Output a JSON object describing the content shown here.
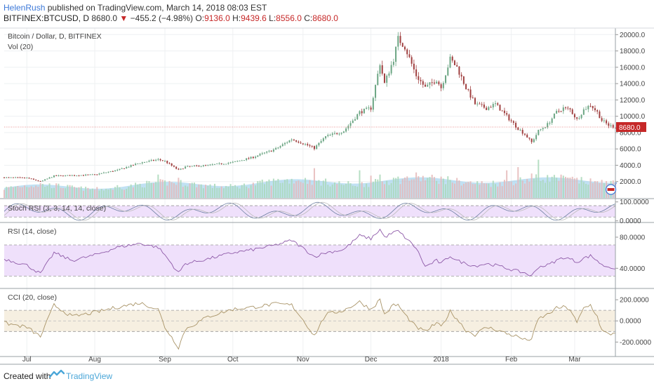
{
  "header": {
    "author": "HelenRush",
    "published_text": "published on TradingView.com, March 14, 2018 08:03 EST",
    "symbol": "BITFINEX:BTCUSD, D",
    "last": "8680.0",
    "change_arrow": "▼",
    "change": "−455.2 (−4.98%)",
    "o_label": "O:",
    "o_value": "9136.0",
    "h_label": "H:",
    "h_value": "9439.6",
    "l_label": "L:",
    "l_value": "8556.0",
    "c_label": "C:",
    "c_value": "8680.0"
  },
  "footer": {
    "created_with": "Created with",
    "brand": "TradingView"
  },
  "colors": {
    "up": "#6ba583",
    "down": "#a04040",
    "grid": "#eef0f2",
    "accent": "#c62828"
  },
  "chart_data": {
    "type": "candlestick",
    "title": "Bitcoin / Dollar, D, BITFINEX",
    "volume_label": "Vol (20)",
    "price_axis": {
      "ticks": [
        2000,
        4000,
        6000,
        8000,
        10000,
        12000,
        14000,
        16000,
        18000,
        20000
      ],
      "ylim": [
        0,
        20800
      ]
    },
    "tick_labels": [
      "2000.0",
      "4000.0",
      "6000.0",
      "8000.0",
      "10000.0",
      "12000.0",
      "14000.0",
      "16000.0",
      "18000.0",
      "20000.0"
    ],
    "last_price_label": "8680.0",
    "x_axis": {
      "labels": [
        "Jul",
        "Aug",
        "Sep",
        "Oct",
        "Nov",
        "Dec",
        "2018",
        "Feb",
        "Mar"
      ],
      "positions": [
        10,
        40,
        71,
        101,
        132,
        162,
        193,
        224,
        252
      ],
      "day_range": [
        0,
        270
      ]
    },
    "price_anchors": [
      [
        0,
        2500
      ],
      [
        10,
        2450
      ],
      [
        16,
        2000
      ],
      [
        22,
        2700
      ],
      [
        30,
        2750
      ],
      [
        40,
        2850
      ],
      [
        50,
        3400
      ],
      [
        60,
        4300
      ],
      [
        68,
        4700
      ],
      [
        71,
        4500
      ],
      [
        77,
        3400
      ],
      [
        80,
        3800
      ],
      [
        90,
        4000
      ],
      [
        101,
        4350
      ],
      [
        110,
        5000
      ],
      [
        120,
        6000
      ],
      [
        127,
        7200
      ],
      [
        131,
        6800
      ],
      [
        137,
        6100
      ],
      [
        142,
        7500
      ],
      [
        150,
        8200
      ],
      [
        157,
        10500
      ],
      [
        162,
        11000
      ],
      [
        166,
        16500
      ],
      [
        168,
        14000
      ],
      [
        172,
        17000
      ],
      [
        174,
        19500
      ],
      [
        177,
        18500
      ],
      [
        182,
        15000
      ],
      [
        186,
        13500
      ],
      [
        191,
        14500
      ],
      [
        193,
        13500
      ],
      [
        197,
        17000
      ],
      [
        200,
        16000
      ],
      [
        204,
        13500
      ],
      [
        208,
        11500
      ],
      [
        213,
        11000
      ],
      [
        217,
        11500
      ],
      [
        222,
        10000
      ],
      [
        227,
        8500
      ],
      [
        230,
        7800
      ],
      [
        233,
        6800
      ],
      [
        236,
        8200
      ],
      [
        240,
        9000
      ],
      [
        244,
        10500
      ],
      [
        247,
        11000
      ],
      [
        250,
        10800
      ],
      [
        253,
        9600
      ],
      [
        256,
        10800
      ],
      [
        259,
        11400
      ],
      [
        262,
        10500
      ],
      [
        264,
        9500
      ],
      [
        267,
        8900
      ],
      [
        270,
        8680
      ]
    ],
    "volume_spikes": [
      [
        16,
        1400
      ],
      [
        50,
        1200
      ],
      [
        68,
        2200
      ],
      [
        77,
        1900
      ],
      [
        137,
        2800
      ],
      [
        157,
        2600
      ],
      [
        162,
        2100
      ],
      [
        166,
        2200
      ],
      [
        172,
        1900
      ],
      [
        182,
        2400
      ],
      [
        197,
        1700
      ],
      [
        222,
        2600
      ],
      [
        227,
        2900
      ],
      [
        233,
        2300
      ],
      [
        236,
        3600
      ],
      [
        244,
        1900
      ],
      [
        264,
        1700
      ],
      [
        267,
        1300
      ]
    ],
    "indicators": [
      {
        "name": "Stoch RSI",
        "label": "Stoch RSI (3, 3, 14, 14, close)",
        "ticks": [
          0,
          100
        ],
        "tick_labels": [
          "0.0000",
          "100.0000"
        ],
        "bands": [
          20,
          80
        ]
      },
      {
        "name": "RSI",
        "label": "RSI (14, close)",
        "ticks": [
          40,
          80
        ],
        "tick_labels": [
          "40.0000",
          "80.0000"
        ],
        "bands": [
          30,
          70
        ],
        "anchors": [
          [
            0,
            52
          ],
          [
            10,
            44
          ],
          [
            16,
            33
          ],
          [
            22,
            60
          ],
          [
            30,
            50
          ],
          [
            40,
            57
          ],
          [
            50,
            67
          ],
          [
            60,
            72
          ],
          [
            68,
            67
          ],
          [
            71,
            57
          ],
          [
            77,
            34
          ],
          [
            80,
            46
          ],
          [
            90,
            52
          ],
          [
            101,
            60
          ],
          [
            110,
            64
          ],
          [
            120,
            70
          ],
          [
            127,
            76
          ],
          [
            131,
            68
          ],
          [
            137,
            55
          ],
          [
            142,
            60
          ],
          [
            150,
            64
          ],
          [
            157,
            82
          ],
          [
            162,
            78
          ],
          [
            166,
            90
          ],
          [
            168,
            80
          ],
          [
            172,
            86
          ],
          [
            174,
            88
          ],
          [
            177,
            80
          ],
          [
            182,
            66
          ],
          [
            186,
            42
          ],
          [
            191,
            50
          ],
          [
            193,
            46
          ],
          [
            197,
            56
          ],
          [
            200,
            50
          ],
          [
            204,
            46
          ],
          [
            208,
            43
          ],
          [
            213,
            46
          ],
          [
            217,
            44
          ],
          [
            222,
            40
          ],
          [
            227,
            36
          ],
          [
            230,
            34
          ],
          [
            233,
            30
          ],
          [
            236,
            42
          ],
          [
            240,
            44
          ],
          [
            244,
            50
          ],
          [
            247,
            54
          ],
          [
            250,
            52
          ],
          [
            253,
            48
          ],
          [
            256,
            53
          ],
          [
            259,
            56
          ],
          [
            262,
            50
          ],
          [
            264,
            44
          ],
          [
            267,
            42
          ],
          [
            270,
            40
          ]
        ]
      },
      {
        "name": "CCI",
        "label": "CCI (20, close)",
        "ticks": [
          -200,
          0,
          200
        ],
        "tick_labels": [
          "-200.0000",
          "0.0000",
          "200.0000"
        ],
        "bands": [
          -100,
          100
        ],
        "anchors": [
          [
            0,
            -20
          ],
          [
            10,
            -60
          ],
          [
            16,
            -150
          ],
          [
            22,
            150
          ],
          [
            30,
            40
          ],
          [
            40,
            80
          ],
          [
            50,
            130
          ],
          [
            60,
            170
          ],
          [
            68,
            110
          ],
          [
            71,
            -60
          ],
          [
            77,
            -250
          ],
          [
            80,
            -80
          ],
          [
            90,
            40
          ],
          [
            101,
            110
          ],
          [
            110,
            130
          ],
          [
            120,
            160
          ],
          [
            127,
            150
          ],
          [
            131,
            40
          ],
          [
            137,
            -140
          ],
          [
            142,
            60
          ],
          [
            150,
            100
          ],
          [
            157,
            180
          ],
          [
            162,
            110
          ],
          [
            166,
            200
          ],
          [
            168,
            60
          ],
          [
            172,
            150
          ],
          [
            174,
            150
          ],
          [
            177,
            60
          ],
          [
            182,
            -60
          ],
          [
            186,
            -100
          ],
          [
            191,
            -20
          ],
          [
            193,
            -60
          ],
          [
            197,
            90
          ],
          [
            200,
            20
          ],
          [
            204,
            -90
          ],
          [
            208,
            -130
          ],
          [
            213,
            -60
          ],
          [
            217,
            -80
          ],
          [
            222,
            -120
          ],
          [
            227,
            -150
          ],
          [
            230,
            -180
          ],
          [
            233,
            -170
          ],
          [
            236,
            20
          ],
          [
            240,
            60
          ],
          [
            244,
            120
          ],
          [
            247,
            130
          ],
          [
            250,
            110
          ],
          [
            253,
            -20
          ],
          [
            256,
            120
          ],
          [
            259,
            150
          ],
          [
            262,
            40
          ],
          [
            264,
            -90
          ],
          [
            267,
            -130
          ],
          [
            270,
            -110
          ]
        ]
      }
    ]
  }
}
